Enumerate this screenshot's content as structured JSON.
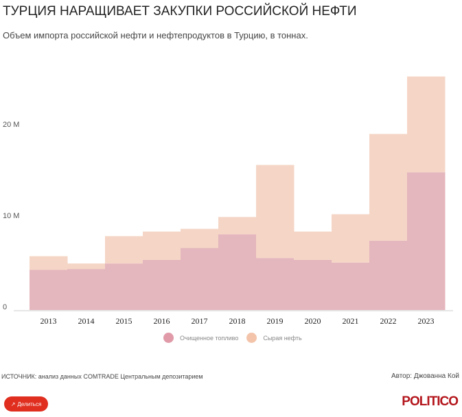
{
  "header": {
    "title": "ТУРЦИЯ НАРАЩИВАЕТ ЗАКУПКИ РОССИЙСКОЙ НЕФТИ",
    "subtitle": "Объем импорта российской нефти и нефтепродуктов в Турцию, в тоннах."
  },
  "chart_data": {
    "type": "area",
    "stacked": true,
    "step": true,
    "categories": [
      "2013",
      "2014",
      "2015",
      "2016",
      "2017",
      "2018",
      "2019",
      "2020",
      "2021",
      "2022",
      "2023"
    ],
    "series": [
      {
        "name": "Очищенное топливо",
        "color": "#e4b6bd",
        "legend_color": "#e09aa8",
        "values": [
          4.4,
          4.5,
          5.1,
          5.5,
          6.8,
          8.3,
          5.7,
          5.5,
          5.2,
          7.6,
          15.1
        ]
      },
      {
        "name": "Сырая нефть",
        "color": "#f5d6c6",
        "legend_color": "#f3c4aa",
        "values": [
          1.5,
          0.6,
          3.0,
          3.1,
          2.1,
          1.9,
          10.2,
          3.1,
          5.3,
          11.7,
          10.5
        ]
      }
    ],
    "ylim": [
      0,
      26
    ],
    "yticks": [
      {
        "value": 0,
        "label": "0"
      },
      {
        "value": 10,
        "label": "10 M"
      },
      {
        "value": 20,
        "label": "20 M"
      }
    ],
    "units": "millions of tonnes",
    "legend": "bottom"
  },
  "footer": {
    "source": "ИСТОЧНИК: анализ данных COMTRADE Центральным депозитарием",
    "author": "Автор: Джованна Кой",
    "share": "Делиться",
    "logo": "POLITICO"
  }
}
